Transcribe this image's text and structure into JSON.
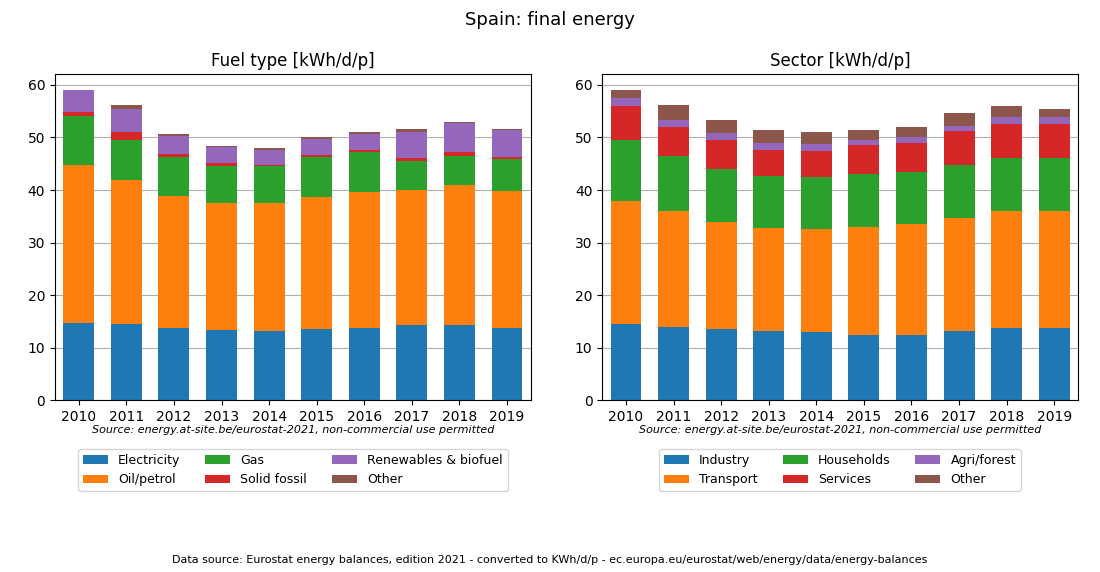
{
  "title": "Spain: final energy",
  "annotations": [
    "Data source: Eurostat energy balances, edition 2021 - converted to KWh/d/p - ec.europa.eu/eurostat/web/energy/data/energy-balances"
  ],
  "chart_data": [
    {
      "type": "bar",
      "stacked": true,
      "title": "Fuel type [kWh/d/p]",
      "categories": [
        "2010",
        "2011",
        "2012",
        "2013",
        "2014",
        "2015",
        "2016",
        "2017",
        "2018",
        "2019"
      ],
      "series": [
        {
          "name": "Electricity",
          "values": [
            14.8,
            14.5,
            13.8,
            13.3,
            13.2,
            13.5,
            13.7,
            14.4,
            14.3,
            13.7
          ]
        },
        {
          "name": "Oil/petrol",
          "values": [
            30.0,
            27.5,
            25.0,
            24.3,
            24.3,
            25.2,
            26.0,
            25.7,
            26.7,
            26.2
          ]
        },
        {
          "name": "Gas",
          "values": [
            9.2,
            7.5,
            7.5,
            7.0,
            7.0,
            7.5,
            7.5,
            5.5,
            5.5,
            6.0
          ]
        },
        {
          "name": "Solid fossil",
          "values": [
            0.8,
            1.5,
            0.5,
            0.5,
            0.2,
            0.5,
            0.5,
            0.5,
            0.7,
            0.3
          ]
        },
        {
          "name": "Renewables & biofuel",
          "values": [
            4.2,
            4.5,
            3.5,
            3.0,
            3.0,
            3.0,
            3.0,
            5.0,
            5.5,
            5.2
          ]
        },
        {
          "name": "Other",
          "values": [
            0.0,
            0.7,
            0.4,
            0.3,
            0.3,
            0.3,
            0.3,
            0.5,
            0.3,
            0.3
          ]
        }
      ],
      "ylim": [
        0,
        62
      ],
      "yticks": [
        0,
        10,
        20,
        30,
        40,
        50,
        60
      ],
      "grid": true,
      "legend": "upper center",
      "annotations": [
        "Source: energy.at-site.be/eurostat-2021, non-commercial use permitted"
      ]
    },
    {
      "type": "bar",
      "stacked": true,
      "title": "Sector [kWh/d/p]",
      "categories": [
        "2010",
        "2011",
        "2012",
        "2013",
        "2014",
        "2015",
        "2016",
        "2017",
        "2018",
        "2019"
      ],
      "series": [
        {
          "name": "Industry",
          "values": [
            14.5,
            14.0,
            13.5,
            13.2,
            13.0,
            12.5,
            12.5,
            13.2,
            13.7,
            13.7
          ]
        },
        {
          "name": "Transport",
          "values": [
            23.5,
            22.0,
            20.5,
            19.5,
            19.5,
            20.5,
            21.0,
            21.5,
            22.3,
            22.3
          ]
        },
        {
          "name": "Households",
          "values": [
            11.5,
            10.5,
            10.0,
            10.0,
            10.0,
            10.0,
            10.0,
            10.0,
            10.0,
            10.0
          ]
        },
        {
          "name": "Services",
          "values": [
            6.5,
            5.5,
            5.5,
            5.0,
            5.0,
            5.5,
            5.5,
            6.5,
            6.5,
            6.5
          ]
        },
        {
          "name": "Agri/forest",
          "values": [
            1.5,
            1.3,
            1.3,
            1.2,
            1.2,
            1.0,
            1.0,
            1.0,
            1.3,
            1.3
          ]
        },
        {
          "name": "Other",
          "values": [
            1.5,
            2.9,
            2.5,
            2.5,
            2.3,
            2.0,
            2.0,
            2.5,
            2.2,
            1.7
          ]
        }
      ],
      "ylim": [
        0,
        62
      ],
      "yticks": [
        0,
        10,
        20,
        30,
        40,
        50,
        60
      ],
      "grid": true,
      "legend": "upper center",
      "annotations": [
        "Source: energy.at-site.be/eurostat-2021, non-commercial use permitted"
      ]
    }
  ]
}
